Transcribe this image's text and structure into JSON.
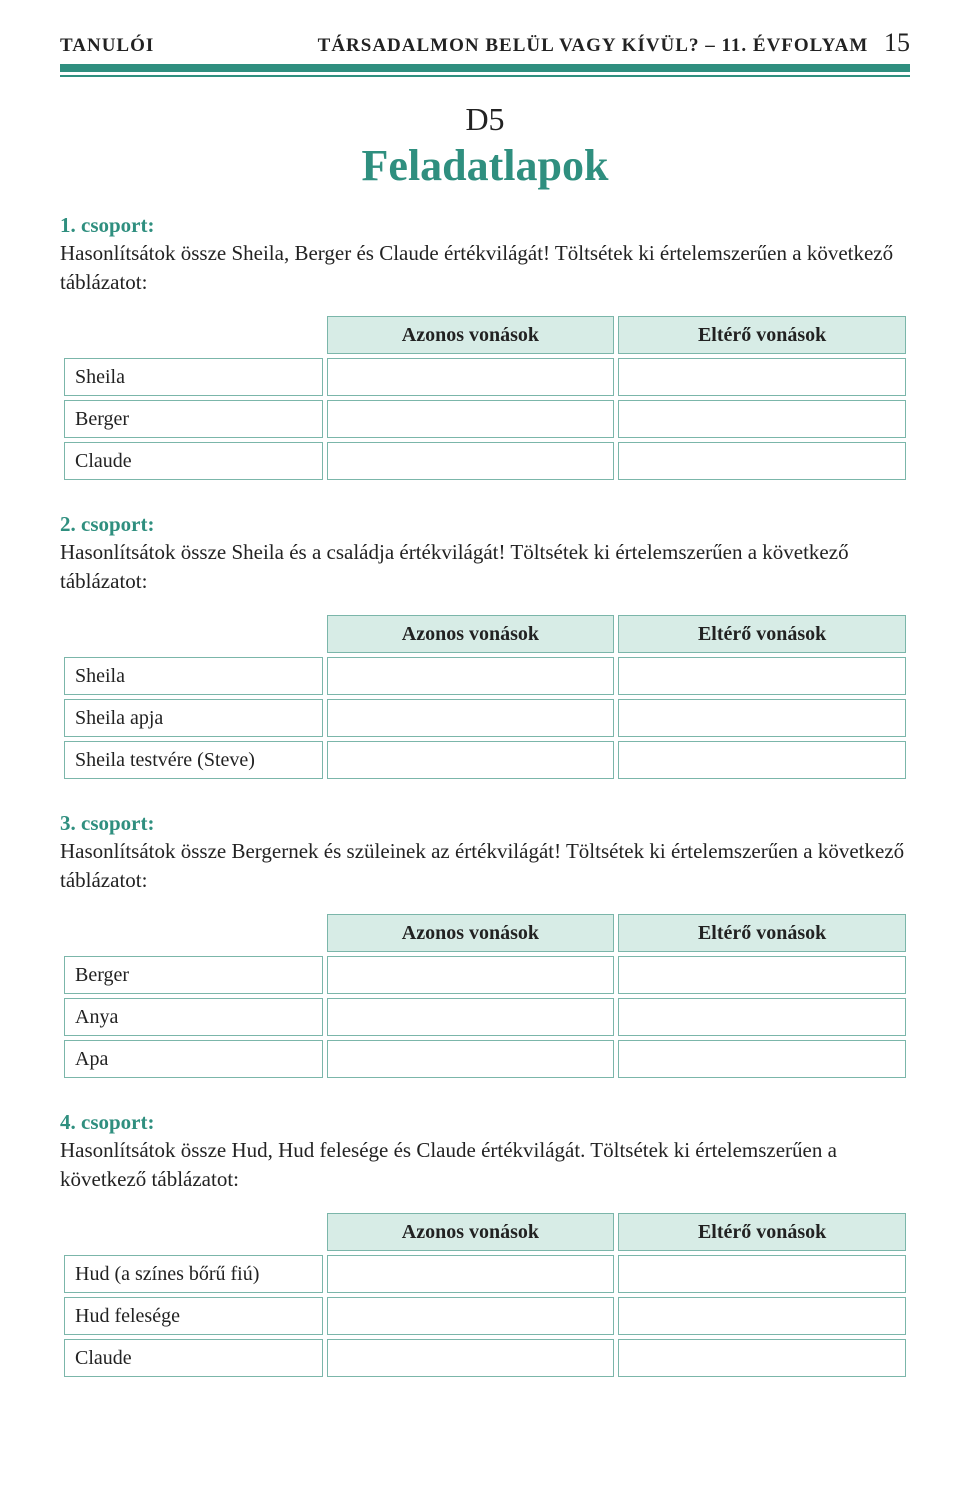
{
  "colors": {
    "accent": "#2f8f7f",
    "table_border": "#7bb6aa",
    "table_header_bg": "#d7ece6",
    "text": "#222222",
    "background": "#ffffff"
  },
  "header": {
    "left": "TANULÓI",
    "right": "TÁRSADALMON BELÜL VAGY KÍVÜL? – 11. ÉVFOLYAM",
    "page": "15"
  },
  "doc": {
    "code": "D5",
    "title": "Feladatlapok"
  },
  "columns": {
    "same": "Azonos vonások",
    "diff": "Eltérő vonások"
  },
  "groups": [
    {
      "label": "1. csoport:",
      "text": "Hasonlítsátok össze Sheila, Berger és Claude értékvilágát! Töltsétek ki értelemszerűen a következő táblázatot:",
      "rows": [
        "Sheila",
        "Berger",
        "Claude"
      ]
    },
    {
      "label": "2. csoport:",
      "text": "Hasonlítsátok össze Sheila és a családja értékvilágát! Töltsétek ki értelemszerűen a következő táblázatot:",
      "rows": [
        "Sheila",
        "Sheila apja",
        "Sheila testvére (Steve)"
      ]
    },
    {
      "label": "3. csoport:",
      "text": "Hasonlítsátok össze Bergernek és szüleinek az értékvilágát! Töltsétek ki értelemszerűen a következő táblázatot:",
      "rows": [
        "Berger",
        "Anya",
        "Apa"
      ]
    },
    {
      "label": "4. csoport:",
      "text": "Hasonlítsátok össze Hud, Hud felesége és Claude értékvilágát. Töltsétek ki értelemszerűen a következő táblázatot:",
      "rows": [
        "Hud (a színes bőrű fiú)",
        "Hud felesége",
        "Claude"
      ]
    }
  ]
}
